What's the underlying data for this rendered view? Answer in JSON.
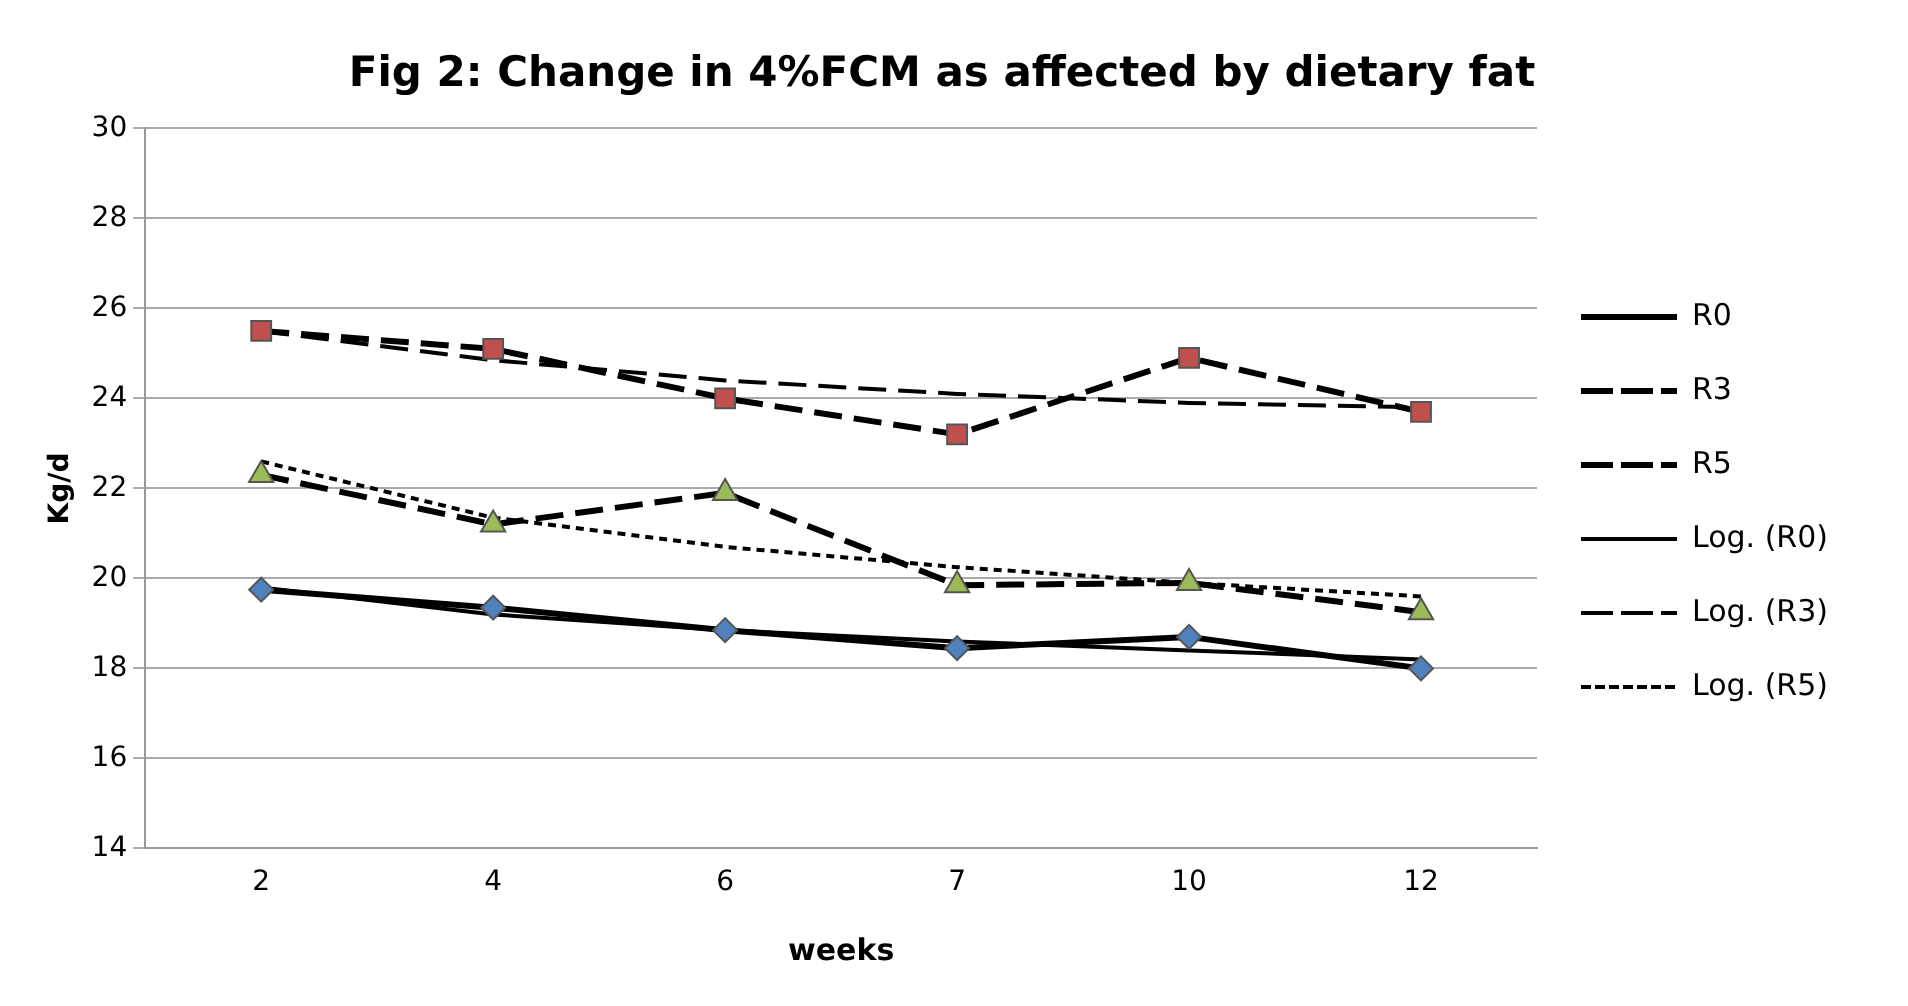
{
  "chart_data": {
    "type": "line",
    "title": "Fig 2: Change in 4%FCM as affected by dietary fat",
    "xlabel": "weeks",
    "ylabel": "Kg/d",
    "categories": [
      "2",
      "4",
      "6",
      "7",
      "10",
      "12"
    ],
    "ylim": [
      14,
      30
    ],
    "yticks": [
      14,
      16,
      18,
      20,
      22,
      24,
      26,
      28,
      30
    ],
    "grid": "y",
    "legend": "right",
    "series": [
      {
        "name": "R0",
        "color": "#4f81bd",
        "marker": "diamond",
        "line_style": "solid",
        "values": [
          19.75,
          19.35,
          18.85,
          18.45,
          18.7,
          18.0
        ]
      },
      {
        "name": "R3",
        "color": "#c0504d",
        "marker": "square",
        "line_style": "dashed",
        "values": [
          25.5,
          25.1,
          24.0,
          23.2,
          24.9,
          23.7
        ]
      },
      {
        "name": "R5",
        "color": "#9bbb59",
        "marker": "triangle",
        "line_style": "dashed",
        "values": [
          22.3,
          21.2,
          21.9,
          19.85,
          19.9,
          19.25
        ]
      },
      {
        "name": "Log. (R0)",
        "color": "#000000",
        "marker": "none",
        "line_style": "solid",
        "values": [
          19.8,
          19.2,
          18.85,
          18.6,
          18.4,
          18.2
        ]
      },
      {
        "name": "Log. (R3)",
        "color": "#000000",
        "marker": "none",
        "line_style": "dashed",
        "values": [
          25.5,
          24.85,
          24.4,
          24.1,
          23.9,
          23.8
        ]
      },
      {
        "name": "Log. (R5)",
        "color": "#000000",
        "marker": "none",
        "line_style": "dotted",
        "values": [
          22.6,
          21.35,
          20.7,
          20.25,
          19.9,
          19.6
        ]
      }
    ]
  }
}
